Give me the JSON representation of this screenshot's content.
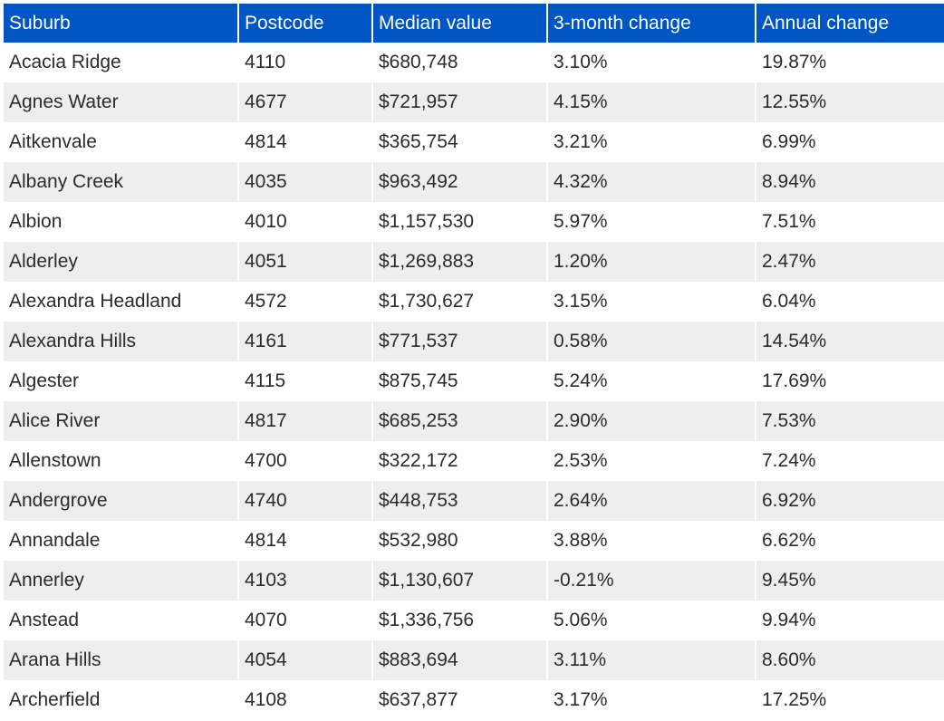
{
  "table": {
    "columns": [
      "Suburb",
      "Postcode",
      "Median value",
      "3-month change",
      "Annual change"
    ],
    "rows": [
      [
        "Acacia Ridge",
        "4110",
        "$680,748",
        "3.10%",
        "19.87%"
      ],
      [
        "Agnes Water",
        "4677",
        "$721,957",
        "4.15%",
        "12.55%"
      ],
      [
        "Aitkenvale",
        "4814",
        "$365,754",
        "3.21%",
        "6.99%"
      ],
      [
        "Albany Creek",
        "4035",
        "$963,492",
        "4.32%",
        "8.94%"
      ],
      [
        "Albion",
        "4010",
        "$1,157,530",
        "5.97%",
        "7.51%"
      ],
      [
        "Alderley",
        "4051",
        "$1,269,883",
        "1.20%",
        "2.47%"
      ],
      [
        "Alexandra Headland",
        "4572",
        "$1,730,627",
        "3.15%",
        "6.04%"
      ],
      [
        "Alexandra Hills",
        "4161",
        "$771,537",
        "0.58%",
        "14.54%"
      ],
      [
        "Algester",
        "4115",
        "$875,745",
        "5.24%",
        "17.69%"
      ],
      [
        "Alice River",
        "4817",
        "$685,253",
        "2.90%",
        "7.53%"
      ],
      [
        "Allenstown",
        "4700",
        "$322,172",
        "2.53%",
        "7.24%"
      ],
      [
        "Andergrove",
        "4740",
        "$448,753",
        "2.64%",
        "6.92%"
      ],
      [
        "Annandale",
        "4814",
        "$532,980",
        "3.88%",
        "6.62%"
      ],
      [
        "Annerley",
        "4103",
        "$1,130,607",
        "-0.21%",
        "9.45%"
      ],
      [
        "Anstead",
        "4070",
        "$1,336,756",
        "5.06%",
        "9.94%"
      ],
      [
        "Arana Hills",
        "4054",
        "$883,694",
        "3.11%",
        "8.60%"
      ],
      [
        "Archerfield",
        "4108",
        "$637,877",
        "3.17%",
        "17.25%"
      ]
    ]
  },
  "colors": {
    "header_bg": "#0055c4",
    "header_text": "#ffffff",
    "stripe_bg": "#eeeeee",
    "cell_text": "#2b2b2b"
  }
}
